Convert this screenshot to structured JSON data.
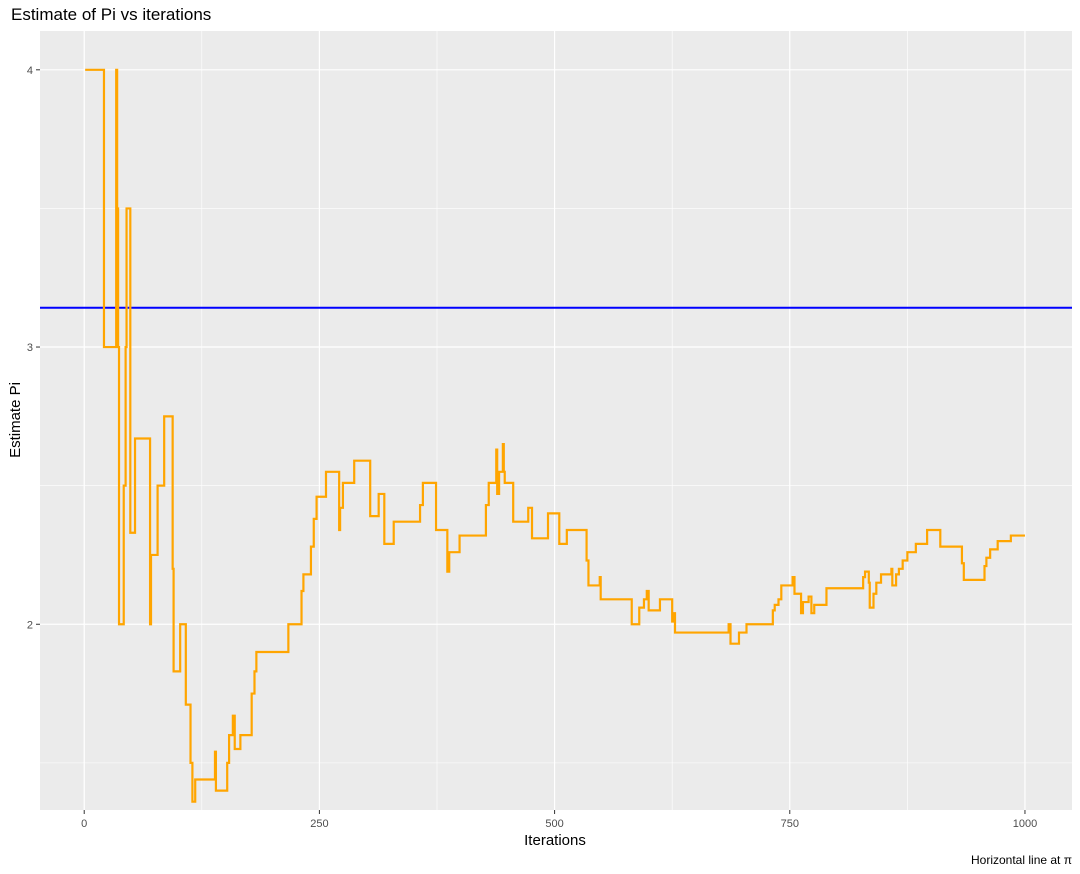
{
  "chart_data": {
    "type": "line",
    "title": "Estimate of Pi vs iterations",
    "xlabel": "Iterations",
    "ylabel": "Estimate Pi",
    "caption": "Horizontal line at π",
    "xlim": [
      -47,
      1050
    ],
    "ylim": [
      1.33,
      4.14
    ],
    "x_ticks": [
      0,
      250,
      500,
      750,
      1000
    ],
    "x_tick_labels": [
      "0",
      "250",
      "500",
      "750",
      "1000"
    ],
    "y_ticks": [
      2,
      3,
      4
    ],
    "y_tick_labels": [
      "2",
      "3",
      "4"
    ],
    "grid": true,
    "legend": "none",
    "colors": {
      "series": "#FFA500",
      "reference": "#0000FF",
      "panel": "#EBEBEB",
      "grid": "#FFFFFF"
    },
    "hline": {
      "y": 3.14159,
      "label": "π"
    },
    "series": [
      {
        "points": [
          [
            1,
            4.0
          ],
          [
            16,
            4.0
          ],
          [
            21,
            3.0
          ],
          [
            33,
            3.0
          ],
          [
            34,
            4.0
          ],
          [
            35,
            3.5
          ],
          [
            36,
            3.0
          ],
          [
            37,
            2.0
          ],
          [
            41,
            2.0
          ],
          [
            42,
            2.5
          ],
          [
            44,
            3.0
          ],
          [
            45,
            3.5
          ],
          [
            48,
            3.5
          ],
          [
            49,
            2.33
          ],
          [
            53,
            2.33
          ],
          [
            54,
            2.67
          ],
          [
            62,
            2.67
          ],
          [
            69,
            2.67
          ],
          [
            70,
            2.0
          ],
          [
            71,
            2.25
          ],
          [
            76,
            2.25
          ],
          [
            78,
            2.5
          ],
          [
            83,
            2.5
          ],
          [
            85,
            2.75
          ],
          [
            91,
            2.75
          ],
          [
            94,
            2.2
          ],
          [
            95,
            1.83
          ],
          [
            101,
            1.83
          ],
          [
            102,
            2.0
          ],
          [
            107,
            2.0
          ],
          [
            108,
            1.71
          ],
          [
            112,
            1.71
          ],
          [
            113,
            1.5
          ],
          [
            115,
            1.36
          ],
          [
            116,
            1.36
          ],
          [
            118,
            1.44
          ],
          [
            137,
            1.44
          ],
          [
            139,
            1.54
          ],
          [
            140,
            1.4
          ],
          [
            151,
            1.4
          ],
          [
            152,
            1.5
          ],
          [
            154,
            1.6
          ],
          [
            158,
            1.67
          ],
          [
            160,
            1.55
          ],
          [
            164,
            1.55
          ],
          [
            166,
            1.6
          ],
          [
            176,
            1.6
          ],
          [
            178,
            1.75
          ],
          [
            181,
            1.83
          ],
          [
            183,
            1.9
          ],
          [
            188,
            1.9
          ],
          [
            215,
            1.9
          ],
          [
            217,
            2.0
          ],
          [
            230,
            2.0
          ],
          [
            231,
            2.12
          ],
          [
            233,
            2.18
          ],
          [
            239,
            2.18
          ],
          [
            241,
            2.28
          ],
          [
            244,
            2.38
          ],
          [
            247,
            2.46
          ],
          [
            256,
            2.46
          ],
          [
            257,
            2.55
          ],
          [
            269,
            2.55
          ],
          [
            271,
            2.34
          ],
          [
            272,
            2.42
          ],
          [
            275,
            2.51
          ],
          [
            286,
            2.51
          ],
          [
            287,
            2.59
          ],
          [
            303,
            2.59
          ],
          [
            304,
            2.39
          ],
          [
            311,
            2.39
          ],
          [
            313,
            2.47
          ],
          [
            318,
            2.47
          ],
          [
            319,
            2.29
          ],
          [
            327,
            2.29
          ],
          [
            329,
            2.37
          ],
          [
            355,
            2.37
          ],
          [
            357,
            2.43
          ],
          [
            360,
            2.51
          ],
          [
            373,
            2.51
          ],
          [
            374,
            2.34
          ],
          [
            383,
            2.34
          ],
          [
            386,
            2.19
          ],
          [
            388,
            2.26
          ],
          [
            396,
            2.26
          ],
          [
            399,
            2.32
          ],
          [
            425,
            2.32
          ],
          [
            427,
            2.43
          ],
          [
            430,
            2.51
          ],
          [
            437,
            2.51
          ],
          [
            438,
            2.63
          ],
          [
            439,
            2.47
          ],
          [
            441,
            2.55
          ],
          [
            443,
            2.55
          ],
          [
            445,
            2.65
          ],
          [
            446,
            2.55
          ],
          [
            447,
            2.51
          ],
          [
            455,
            2.51
          ],
          [
            456,
            2.37
          ],
          [
            470,
            2.37
          ],
          [
            472,
            2.42
          ],
          [
            476,
            2.31
          ],
          [
            484,
            2.31
          ],
          [
            491,
            2.31
          ],
          [
            493,
            2.4
          ],
          [
            504,
            2.4
          ],
          [
            505,
            2.29
          ],
          [
            512,
            2.29
          ],
          [
            513,
            2.34
          ],
          [
            532,
            2.34
          ],
          [
            534,
            2.23
          ],
          [
            536,
            2.14
          ],
          [
            547,
            2.14
          ],
          [
            548,
            2.17
          ],
          [
            549,
            2.09
          ],
          [
            570,
            2.09
          ],
          [
            580,
            2.09
          ],
          [
            582,
            2.0
          ],
          [
            588,
            2.0
          ],
          [
            590,
            2.06
          ],
          [
            593,
            2.06
          ],
          [
            595,
            2.09
          ],
          [
            598,
            2.12
          ],
          [
            600,
            2.05
          ],
          [
            610,
            2.05
          ],
          [
            612,
            2.09
          ],
          [
            623,
            2.09
          ],
          [
            625,
            2.01
          ],
          [
            627,
            2.04
          ],
          [
            628,
            1.97
          ],
          [
            684,
            1.97
          ],
          [
            685,
            2.0
          ],
          [
            687,
            1.93
          ],
          [
            694,
            1.93
          ],
          [
            696,
            1.97
          ],
          [
            702,
            1.97
          ],
          [
            704,
            2.0
          ],
          [
            730,
            2.0
          ],
          [
            732,
            2.05
          ],
          [
            734,
            2.07
          ],
          [
            738,
            2.09
          ],
          [
            741,
            2.14
          ],
          [
            752,
            2.14
          ],
          [
            753,
            2.17
          ],
          [
            755,
            2.11
          ],
          [
            760,
            2.11
          ],
          [
            762,
            2.04
          ],
          [
            764,
            2.08
          ],
          [
            767,
            2.08
          ],
          [
            770,
            2.1
          ],
          [
            773,
            2.04
          ],
          [
            776,
            2.07
          ],
          [
            787,
            2.07
          ],
          [
            789,
            2.13
          ],
          [
            826,
            2.13
          ],
          [
            828,
            2.17
          ],
          [
            830,
            2.19
          ],
          [
            834,
            2.15
          ],
          [
            835,
            2.06
          ],
          [
            839,
            2.11
          ],
          [
            842,
            2.15
          ],
          [
            847,
            2.18
          ],
          [
            856,
            2.18
          ],
          [
            858,
            2.2
          ],
          [
            859,
            2.14
          ],
          [
            863,
            2.18
          ],
          [
            866,
            2.2
          ],
          [
            870,
            2.23
          ],
          [
            875,
            2.26
          ],
          [
            882,
            2.26
          ],
          [
            884,
            2.29
          ],
          [
            893,
            2.29
          ],
          [
            896,
            2.34
          ],
          [
            907,
            2.34
          ],
          [
            910,
            2.28
          ],
          [
            931,
            2.28
          ],
          [
            933,
            2.22
          ],
          [
            935,
            2.16
          ],
          [
            955,
            2.16
          ],
          [
            957,
            2.21
          ],
          [
            959,
            2.24
          ],
          [
            963,
            2.27
          ],
          [
            969,
            2.27
          ],
          [
            971,
            2.3
          ],
          [
            983,
            2.3
          ],
          [
            985,
            2.32
          ],
          [
            1000,
            2.32
          ]
        ]
      }
    ]
  }
}
